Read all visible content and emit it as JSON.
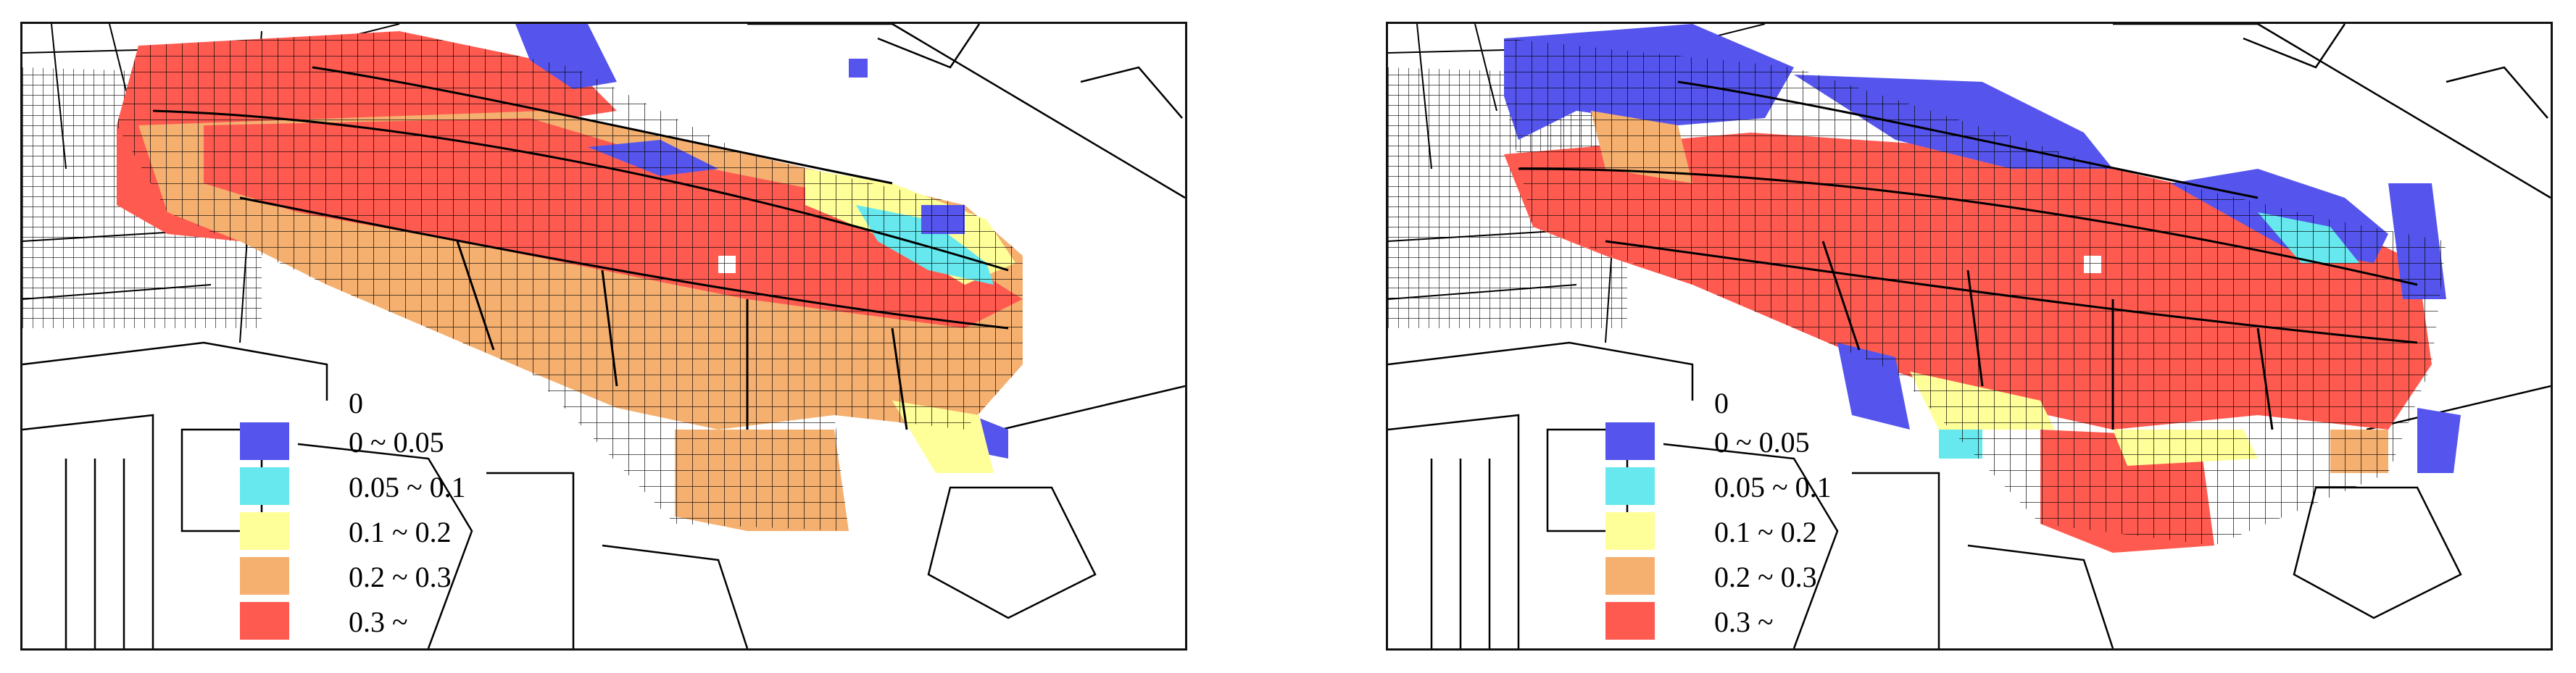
{
  "legend": {
    "zero_label": "0",
    "items": [
      {
        "label": "0 ~ 0.05",
        "color": "#5555ee"
      },
      {
        "label": "0.05 ~ 0.1",
        "color": "#66e8ee"
      },
      {
        "label": "0.1 ~ 0.2",
        "color": "#ffff99"
      },
      {
        "label": "0.2 ~ 0.3",
        "color": "#f5b070"
      },
      {
        "label": "0.3 ~",
        "color": "#ff5a50"
      }
    ]
  },
  "maps": [
    {
      "id": "left",
      "dominant_class": "0.2 ~ 0.3",
      "zones": [
        {
          "class": "0.3 ~",
          "color": "#ff5a50"
        },
        {
          "class": "0.2 ~ 0.3",
          "color": "#f5b070"
        },
        {
          "class": "0.1 ~ 0.2",
          "color": "#ffff99"
        },
        {
          "class": "0.05 ~ 0.1",
          "color": "#66e8ee"
        },
        {
          "class": "0 ~ 0.05",
          "color": "#5555ee"
        }
      ]
    },
    {
      "id": "right",
      "dominant_class": "0.3 ~",
      "zones": [
        {
          "class": "0.3 ~",
          "color": "#ff5a50"
        },
        {
          "class": "0.2 ~ 0.3",
          "color": "#f5b070"
        },
        {
          "class": "0.1 ~ 0.2",
          "color": "#ffff99"
        },
        {
          "class": "0.05 ~ 0.1",
          "color": "#66e8ee"
        },
        {
          "class": "0 ~ 0.05",
          "color": "#5555ee"
        }
      ]
    }
  ]
}
